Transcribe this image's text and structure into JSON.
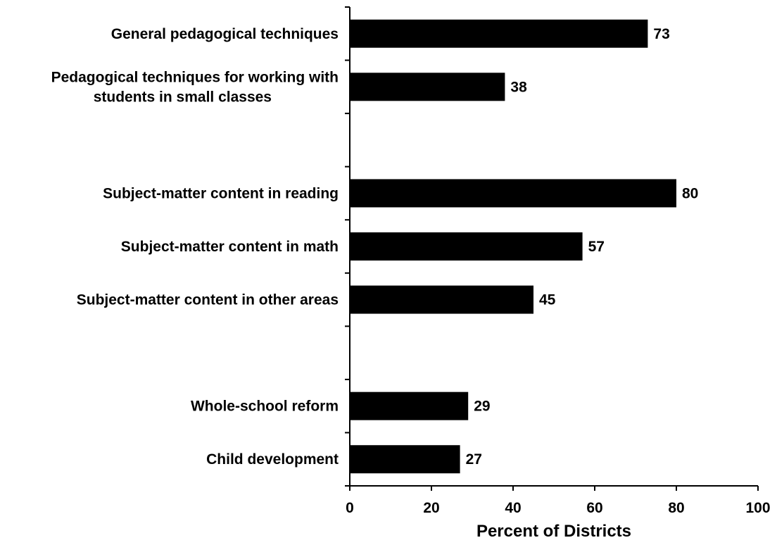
{
  "chart_data": {
    "type": "bar",
    "orientation": "horizontal",
    "categories": [
      [
        "General pedagogical techniques"
      ],
      [
        "Pedagogical techniques for working with",
        "students in small classes"
      ],
      null,
      [
        "Subject-matter content in reading"
      ],
      [
        "Subject-matter content in math"
      ],
      [
        "Subject-matter content in other areas"
      ],
      null,
      [
        "Whole-school reform"
      ],
      [
        "Child development"
      ]
    ],
    "values": [
      73,
      38,
      null,
      80,
      57,
      45,
      null,
      29,
      27
    ],
    "value_labels": [
      "73",
      "38",
      "",
      "80",
      "57",
      "45",
      "",
      "29",
      "27"
    ],
    "xlabel": "Percent of Districts",
    "xlim": [
      0,
      100
    ],
    "xticks": [
      "0",
      "20",
      "40",
      "60",
      "80",
      "100"
    ],
    "bar_color": "#000000",
    "grid": false,
    "legend": "none"
  }
}
